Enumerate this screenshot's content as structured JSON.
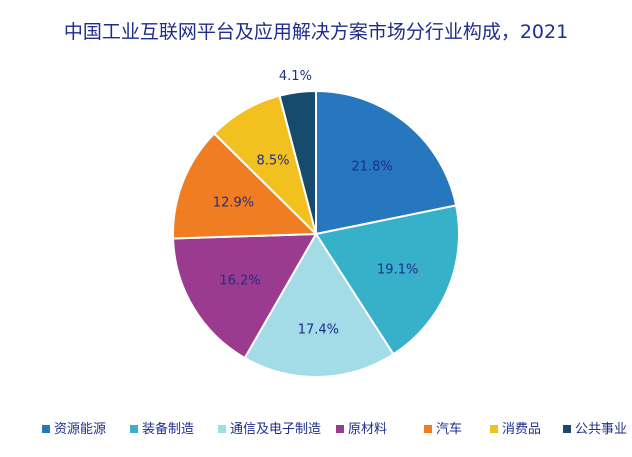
{
  "chart_data": {
    "type": "pie",
    "title": "中国工业互联网平台及应用解决方案市场分行业构成，2021",
    "categories": [
      "资源能源",
      "装备制造",
      "通信及电子制造",
      "原材料",
      "汽车",
      "消费品",
      "公共事业"
    ],
    "values": [
      21.8,
      19.1,
      17.4,
      16.2,
      12.9,
      8.5,
      4.1
    ],
    "labels": [
      "21.8%",
      "19.1%",
      "17.4%",
      "16.2%",
      "12.9%",
      "8.5%",
      "4.1%"
    ],
    "unit": "%",
    "colors": [
      "#2677bd",
      "#37b0c9",
      "#a3dbe6",
      "#9a3b8f",
      "#f07d22",
      "#f3c11f",
      "#174b6e"
    ],
    "legend_position": "bottom",
    "start_angle": "top",
    "direction": "clockwise"
  }
}
